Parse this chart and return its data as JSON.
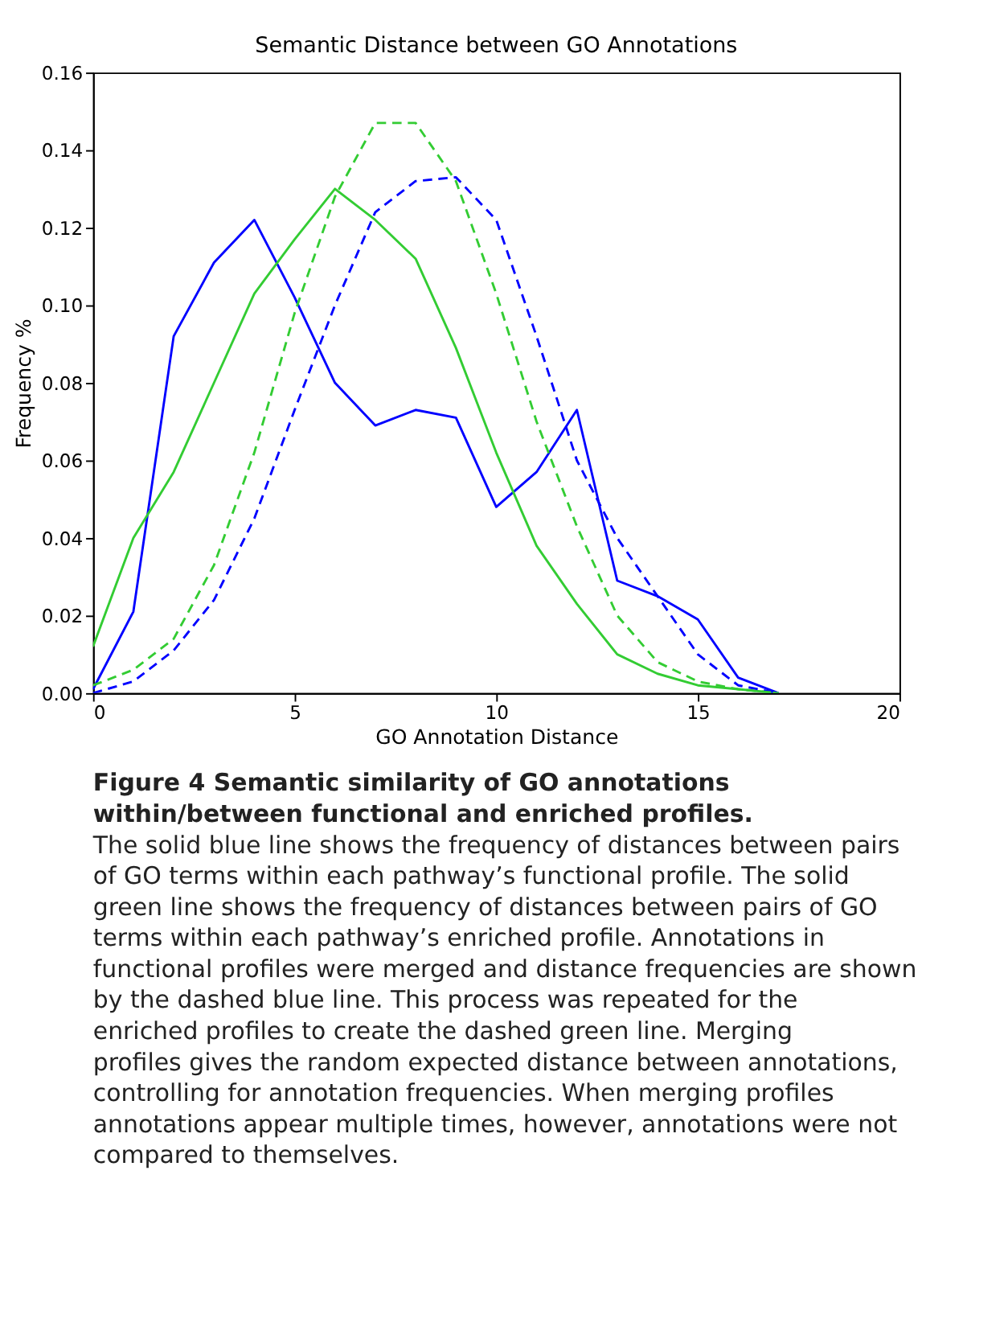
{
  "chart_data": {
    "type": "line",
    "title": "Semantic Distance between GO Annotations",
    "xlabel": "GO Annotation Distance",
    "ylabel": "Frequency %",
    "x": [
      0,
      1,
      2,
      3,
      4,
      5,
      6,
      7,
      8,
      9,
      10,
      11,
      12,
      13,
      14,
      15,
      16,
      17
    ],
    "series": [
      {
        "color": "#0000ff",
        "line_style": "solid",
        "values": [
          0.001,
          0.021,
          0.092,
          0.111,
          0.122,
          0.102,
          0.08,
          0.069,
          0.073,
          0.071,
          0.048,
          0.057,
          0.073,
          0.029,
          0.025,
          0.019,
          0.004,
          0
        ]
      },
      {
        "color": "#33cc33",
        "line_style": "solid",
        "values": [
          0.012,
          0.04,
          0.057,
          0.08,
          0.103,
          0.117,
          0.13,
          0.122,
          0.112,
          0.089,
          0.062,
          0.038,
          0.023,
          0.01,
          0.005,
          0.002,
          0.001,
          0
        ]
      },
      {
        "color": "#0000ff",
        "line_style": "dashed",
        "values": [
          0.0,
          0.003,
          0.011,
          0.024,
          0.045,
          0.073,
          0.1,
          0.124,
          0.132,
          0.133,
          0.122,
          0.092,
          0.06,
          0.04,
          0.025,
          0.01,
          0.002,
          0
        ]
      },
      {
        "color": "#33cc33",
        "line_style": "dashed",
        "values": [
          0.002,
          0.006,
          0.014,
          0.033,
          0.062,
          0.098,
          0.128,
          0.147,
          0.147,
          0.132,
          0.103,
          0.07,
          0.043,
          0.02,
          0.008,
          0.003,
          0.001,
          0
        ]
      }
    ],
    "xlim": [
      0,
      20
    ],
    "xticks": [
      0,
      5,
      10,
      15,
      20
    ],
    "ylim": [
      0,
      0.16
    ],
    "yticks": [
      {
        "value": 0,
        "label": "0.00"
      },
      {
        "value": 0.02,
        "label": "0.02"
      },
      {
        "value": 0.04,
        "label": "0.04"
      },
      {
        "value": 0.06,
        "label": "0.06"
      },
      {
        "value": 0.08,
        "label": "0.08"
      },
      {
        "value": 0.1,
        "label": "0.10"
      },
      {
        "value": 0.12,
        "label": "0.12"
      },
      {
        "value": 0.14,
        "label": "0.14"
      },
      {
        "value": 0.16,
        "label": "0.16"
      }
    ],
    "grid": false,
    "legend": false,
    "annotations": [
      "Figure 4 Semantic similarity of GO annotations within/between functional and enriched profiles.",
      "The solid blue line shows the frequency of distances between pairs of GO terms within each pathway’s functional profile. The solid green line shows the frequency of distances between pairs of GO terms within each pathway’s enriched profile. Annotations in functional profiles were merged and distance frequencies are shown by the dashed blue line. This process was repeated for the enriched profiles to create the dashed green line. Merging profiles gives the random expected distance between annotations, controlling for annotation frequencies. When merging profiles annotations appear multiple times, however, annotations were not compared to themselves."
    ]
  }
}
